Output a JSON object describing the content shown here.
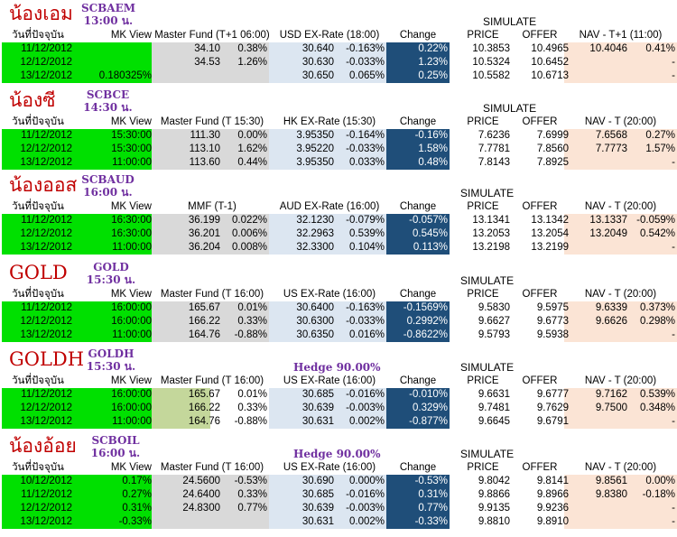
{
  "sections": [
    {
      "title": "น้องเอม",
      "code": "SCBAEM",
      "time": "13:00 น.",
      "hedge": "",
      "simulate": "SIMULATE",
      "headers": [
        "วันที่ปัจจุบัน",
        "MK View",
        "Master Fund (T+1 06:00)",
        "USD EX-Rate (18:00)",
        "Change",
        "PRICE",
        "OFFER",
        "NAV - T+1 (11:00)"
      ],
      "rows": [
        {
          "date": "11/12/2012",
          "mk": "",
          "mf": "34.10",
          "mfc": "0.38%",
          "fx": "30.640",
          "fxc": "-0.163%",
          "chg": "0.22%",
          "price": "10.3853",
          "offer": "10.4965",
          "nav": "10.4046",
          "navc": "0.41%"
        },
        {
          "date": "12/12/2012",
          "mk": "",
          "mf": "34.53",
          "mfc": "1.26%",
          "fx": "30.630",
          "fxc": "-0.033%",
          "chg": "1.23%",
          "price": "10.5324",
          "offer": "10.6452",
          "nav": "",
          "navc": "-"
        },
        {
          "date": "13/12/2012",
          "mk": "0.180325%",
          "mf": "",
          "mfc": "",
          "fx": "30.650",
          "fxc": "0.065%",
          "chg": "0.25%",
          "price": "10.5582",
          "offer": "10.6713",
          "nav": "",
          "navc": "-"
        }
      ]
    },
    {
      "title": "น้องซี",
      "code": "SCBCE",
      "time": "14:30 น.",
      "hedge": "",
      "simulate": "SIMULATE",
      "headers": [
        "วันที่ปัจจุบัน",
        "MK View",
        "Master Fund (T 15:30)",
        "HK EX-Rate (15:30)",
        "Change",
        "PRICE",
        "OFFER",
        "NAV - T (20:00)"
      ],
      "rows": [
        {
          "date": "11/12/2012",
          "mk": "15:30:00",
          "mf": "111.30",
          "mfc": "0.00%",
          "fx": "3.95350",
          "fxc": "-0.164%",
          "chg": "-0.16%",
          "price": "7.6236",
          "offer": "7.6999",
          "nav": "7.6568",
          "navc": "0.27%"
        },
        {
          "date": "12/12/2012",
          "mk": "15:30:00",
          "mf": "113.10",
          "mfc": "1.62%",
          "fx": "3.95220",
          "fxc": "-0.033%",
          "chg": "1.58%",
          "price": "7.7781",
          "offer": "7.8560",
          "nav": "7.7773",
          "navc": "1.57%"
        },
        {
          "date": "13/12/2012",
          "mk": "11:00:00",
          "mf": "113.60",
          "mfc": "0.44%",
          "fx": "3.95350",
          "fxc": "0.033%",
          "chg": "0.48%",
          "price": "7.8143",
          "offer": "7.8925",
          "nav": "",
          "navc": "-"
        }
      ]
    },
    {
      "title": "น้องออส",
      "code": "SCBAUD",
      "time": "16:00 น.",
      "hedge": "",
      "simulate": "SIMULATE",
      "headers": [
        "วันที่ปัจจุบัน",
        "MK View",
        "MMF (T-1)",
        "AUD EX-Rate (16:00)",
        "Change",
        "PRICE",
        "OFFER",
        "NAV - T (20:00)"
      ],
      "rows": [
        {
          "date": "11/12/2012",
          "mk": "16:30:00",
          "mf": "36.199",
          "mfc": "0.022%",
          "fx": "32.1230",
          "fxc": "-0.079%",
          "chg": "-0.057%",
          "price": "13.1341",
          "offer": "13.1342",
          "nav": "13.1337",
          "navc": "-0.059%"
        },
        {
          "date": "12/12/2012",
          "mk": "16:30:00",
          "mf": "36.201",
          "mfc": "0.006%",
          "fx": "32.2963",
          "fxc": "0.539%",
          "chg": "0.545%",
          "price": "13.2053",
          "offer": "13.2054",
          "nav": "13.2049",
          "navc": "0.542%"
        },
        {
          "date": "13/12/2012",
          "mk": "11:00:00",
          "mf": "36.204",
          "mfc": "0.008%",
          "fx": "32.3300",
          "fxc": "0.104%",
          "chg": "0.113%",
          "price": "13.2198",
          "offer": "13.2199",
          "nav": "",
          "navc": "-"
        }
      ]
    },
    {
      "title": "GOLD",
      "code": "GOLD",
      "time": "15:30 น.",
      "hedge": "",
      "simulate": "SIMULATE",
      "headers": [
        "วันที่ปัจจุบัน",
        "MK View",
        "Master Fund (T 16:00)",
        "US EX-Rate (16:00)",
        "Change",
        "PRICE",
        "OFFER",
        "NAV - T (20:00)"
      ],
      "rows": [
        {
          "date": "11/12/2012",
          "mk": "16:00:00",
          "mf": "165.67",
          "mfc": "0.01%",
          "fx": "30.6400",
          "fxc": "-0.163%",
          "chg": "-0.1569%",
          "price": "9.5830",
          "offer": "9.5975",
          "nav": "9.6339",
          "navc": "0.373%"
        },
        {
          "date": "12/12/2012",
          "mk": "16:00:00",
          "mf": "166.22",
          "mfc": "0.33%",
          "fx": "30.6300",
          "fxc": "-0.033%",
          "chg": "0.2992%",
          "price": "9.6627",
          "offer": "9.6773",
          "nav": "9.6626",
          "navc": "0.298%"
        },
        {
          "date": "13/12/2012",
          "mk": "11:00:00",
          "mf": "164.76",
          "mfc": "-0.88%",
          "fx": "30.6350",
          "fxc": "0.016%",
          "chg": "-0.8622%",
          "price": "9.5793",
          "offer": "9.5938",
          "nav": "",
          "navc": "-"
        }
      ]
    },
    {
      "title": "GOLDH",
      "code": "GOLDH",
      "time": "15:30 น.",
      "hedge": "Hedge 90.00%",
      "simulate": "SIMULATE",
      "headers": [
        "วันที่ปัจจุบัน",
        "MK View",
        "Master Fund (T 16:00)",
        "US EX-Rate (16:00)",
        "Change",
        "PRICE",
        "OFFER",
        "NAV - T (20:00)"
      ],
      "rows": [
        {
          "date": "11/12/2012",
          "mk": "16:00:00",
          "mf": "165.67",
          "mfc": "0.01%",
          "fx": "30.685",
          "fxc": "-0.016%",
          "chg": "-0.010%",
          "price": "9.6631",
          "offer": "9.6777",
          "nav": "9.7162",
          "navc": "0.539%"
        },
        {
          "date": "12/12/2012",
          "mk": "16:00:00",
          "mf": "166.22",
          "mfc": "0.33%",
          "fx": "30.639",
          "fxc": "-0.003%",
          "chg": "0.329%",
          "price": "9.7481",
          "offer": "9.7629",
          "nav": "9.7500",
          "navc": "0.348%"
        },
        {
          "date": "13/12/2012",
          "mk": "11:00:00",
          "mf": "164.76",
          "mfc": "-0.88%",
          "fx": "30.631",
          "fxc": "0.002%",
          "chg": "-0.877%",
          "price": "9.6645",
          "offer": "9.6791",
          "nav": "",
          "navc": "-"
        }
      ]
    },
    {
      "title": "น้องอ้อย",
      "code": "SCBOIL",
      "time": "16:00 น.",
      "hedge": "Hedge 90.00%",
      "simulate": "SIMULATE",
      "headers": [
        "วันที่ปัจจุบัน",
        "MK View",
        "Master Fund (T 16:00)",
        "US EX-Rate (16:00)",
        "Change",
        "PRICE",
        "OFFER",
        "NAV - T (20:00)"
      ],
      "rows": [
        {
          "date": "10/12/2012",
          "mk": "0.17%",
          "mf": "24.5600",
          "mfc": "-0.53%",
          "fx": "30.690",
          "fxc": "0.000%",
          "chg": "-0.53%",
          "price": "9.8042",
          "offer": "9.8141",
          "nav": "9.8561",
          "navc": "0.00%"
        },
        {
          "date": "11/12/2012",
          "mk": "0.27%",
          "mf": "24.6400",
          "mfc": "0.33%",
          "fx": "30.685",
          "fxc": "-0.016%",
          "chg": "0.31%",
          "price": "9.8866",
          "offer": "9.8966",
          "nav": "9.8380",
          "navc": "-0.18%"
        },
        {
          "date": "12/12/2012",
          "mk": "0.31%",
          "mf": "24.8300",
          "mfc": "0.77%",
          "fx": "30.639",
          "fxc": "-0.003%",
          "chg": "0.77%",
          "price": "9.9135",
          "offer": "9.9236",
          "nav": "",
          "navc": "-"
        },
        {
          "date": "13/12/2012",
          "mk": "-0.33%",
          "mf": "",
          "mfc": "",
          "fx": "30.631",
          "fxc": "0.002%",
          "chg": "-0.33%",
          "price": "9.8810",
          "offer": "9.8910",
          "nav": "",
          "navc": "-"
        }
      ]
    }
  ]
}
